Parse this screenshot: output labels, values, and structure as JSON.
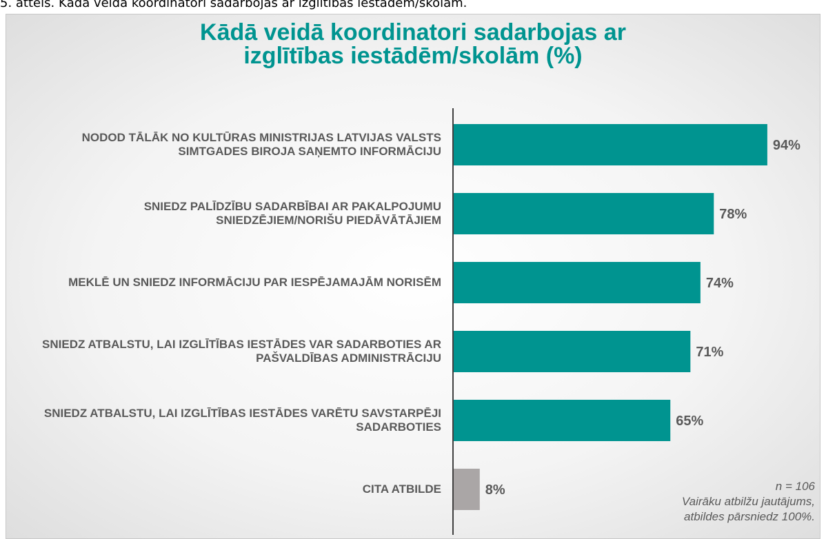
{
  "caption": "5. attēls. Kādā veidā koordinatori sadarbojas ar izglītības iestādēm/skolām.",
  "chart_data": {
    "type": "barh",
    "title": "Kādā veidā koordinatori sadarbojas ar izglītības iestādēm/skolām (%)",
    "categories": [
      "NODOD TĀLĀK NO KULTŪRAS MINISTRIJAS LATVIJAS VALSTS SIMTGADES BIROJA SAŅEMTO INFORMĀCIJU",
      "SNIEDZ PALĪDZĪBU SADARBĪBAI AR PAKALPOJUMU SNIEDZĒJIEM/NORIŠU PIEDĀVĀTĀJIEM",
      "MEKLĒ UN SNIEDZ INFORMĀCIJU PAR IESPĒJAMAJĀM NORISĒM",
      "SNIEDZ ATBALSTU, LAI IZGLĪTĪBAS IESTĀDES VAR SADARBOTIES AR PAŠVALDĪBAS ADMINISTRĀCIJU",
      "SNIEDZ ATBALSTU, LAI IZGLĪTĪBAS IESTĀDES VARĒTU SAVSTARPĒJI SADARBOTIES",
      "CITA ATBILDE"
    ],
    "values": [
      94,
      78,
      74,
      71,
      65,
      8
    ],
    "value_labels": [
      "94%",
      "78%",
      "74%",
      "71%",
      "65%",
      "8%"
    ],
    "colors": [
      "#009490",
      "#009490",
      "#009490",
      "#009490",
      "#009490",
      "#aaa6a6"
    ],
    "xlim": [
      0,
      100
    ],
    "note": [
      "n = 106",
      "Vairāku atbilžu jautājums,",
      "atbildes pārsniedz 100%."
    ]
  }
}
